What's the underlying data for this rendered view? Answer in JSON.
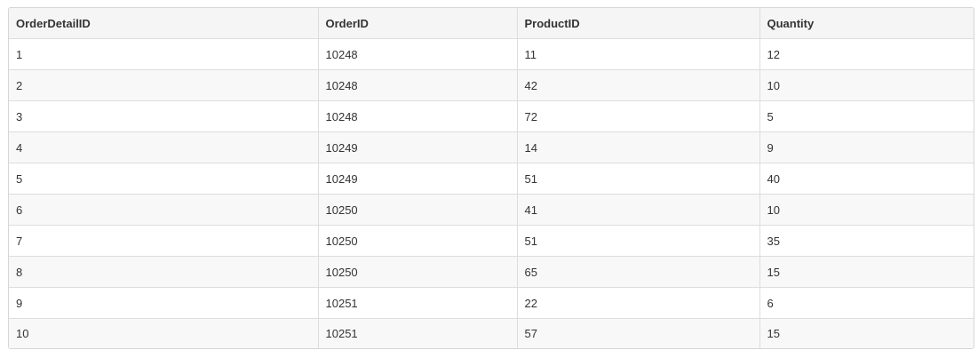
{
  "table": {
    "columns": [
      "OrderDetailID",
      "OrderID",
      "ProductID",
      "Quantity"
    ],
    "rows": [
      [
        "1",
        "10248",
        "11",
        "12"
      ],
      [
        "2",
        "10248",
        "42",
        "10"
      ],
      [
        "3",
        "10248",
        "72",
        "5"
      ],
      [
        "4",
        "10249",
        "14",
        "9"
      ],
      [
        "5",
        "10249",
        "51",
        "40"
      ],
      [
        "6",
        "10250",
        "41",
        "10"
      ],
      [
        "7",
        "10250",
        "51",
        "35"
      ],
      [
        "8",
        "10250",
        "65",
        "15"
      ],
      [
        "9",
        "10251",
        "22",
        "6"
      ],
      [
        "10",
        "10251",
        "57",
        "15"
      ]
    ]
  }
}
